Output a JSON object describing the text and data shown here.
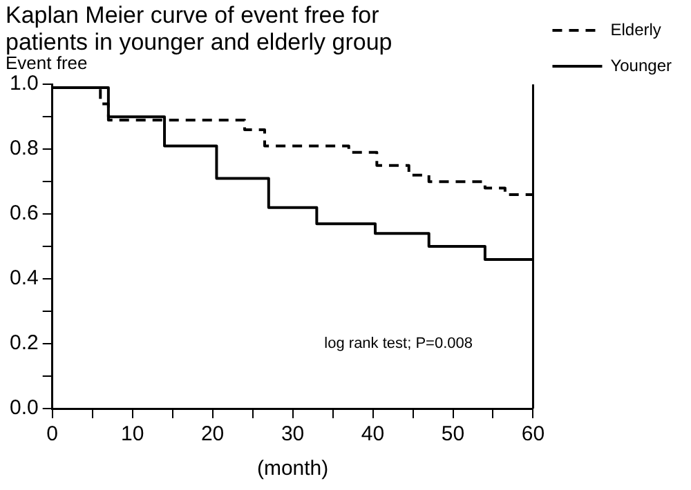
{
  "chart_data": {
    "type": "step",
    "title": [
      "Kaplan Meier curve of event free for",
      "patients in younger and elderly group"
    ],
    "xlabel": "(month)",
    "ylabel": "Event free",
    "series": [
      {
        "name": "Elderly",
        "color": "#000000",
        "line_style": "dashed",
        "x": [
          0,
          6,
          7,
          24,
          26.5,
          37,
          40.5,
          44.5,
          47,
          54,
          56.5,
          60
        ],
        "values": [
          0.99,
          0.94,
          0.89,
          0.86,
          0.81,
          0.79,
          0.75,
          0.72,
          0.7,
          0.68,
          0.66,
          0.66
        ]
      },
      {
        "name": "Younger",
        "color": "#000000",
        "line_style": "solid",
        "x": [
          0,
          7,
          14,
          20.5,
          27,
          33,
          40.3,
          47,
          54,
          60
        ],
        "values": [
          0.99,
          0.9,
          0.81,
          0.71,
          0.62,
          0.57,
          0.54,
          0.5,
          0.46,
          0.46
        ]
      }
    ],
    "xlim": [
      0,
      60
    ],
    "xticks": [
      0,
      {
        "value": 5,
        "label": null
      },
      10,
      {
        "value": 15,
        "label": null
      },
      20,
      {
        "value": 25,
        "label": null
      },
      30,
      {
        "value": 35,
        "label": null
      },
      40,
      {
        "value": 45,
        "label": null
      },
      50,
      {
        "value": 55,
        "label": null
      },
      60
    ],
    "ylim": [
      0,
      1
    ],
    "yticks": [
      "0.0",
      {
        "value": 0.1,
        "label": null
      },
      {
        "value": 0.2,
        "label": "0.2"
      },
      {
        "value": 0.3,
        "label": null
      },
      {
        "value": 0.4,
        "label": "0.4"
      },
      {
        "value": 0.5,
        "label": null
      },
      {
        "value": 0.6,
        "label": "0.6"
      },
      {
        "value": 0.7,
        "label": null
      },
      {
        "value": 0.8,
        "label": "0.8"
      },
      {
        "value": 0.9,
        "label": null
      },
      {
        "value": 1,
        "label": "1.0"
      }
    ],
    "annotations": [
      "log rank test; P=0.008"
    ],
    "grid": false,
    "legend": "top right",
    "marker": "none"
  }
}
